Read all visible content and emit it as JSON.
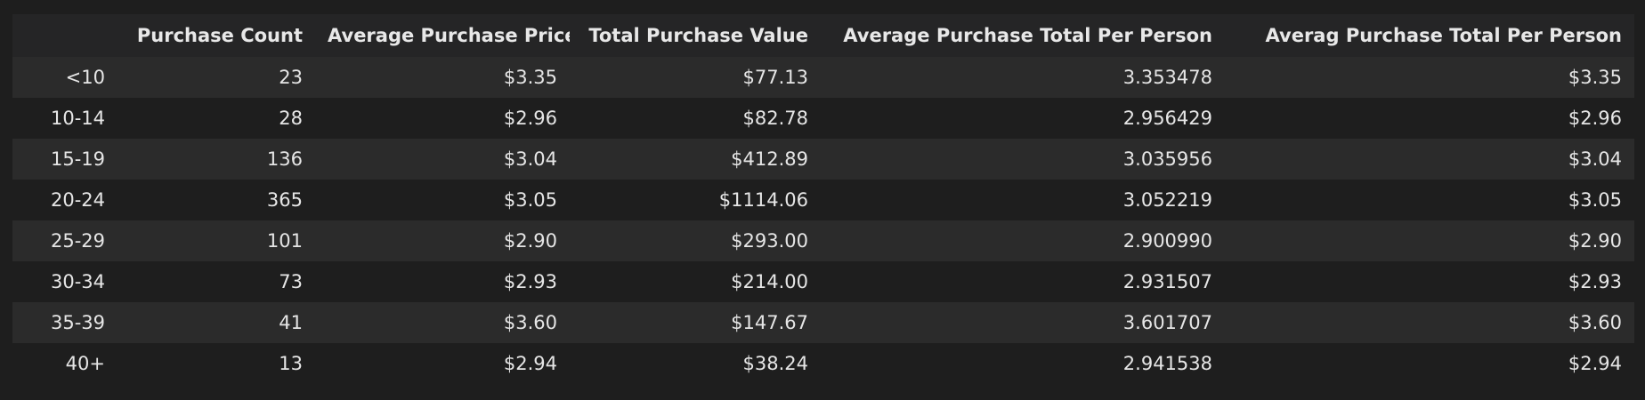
{
  "table": {
    "columns": [
      "",
      "Purchase Count",
      "Average Purchase Price",
      "Total Purchase Value",
      "Average Purchase Total Per Person",
      "Averag Purchase Total Per Person"
    ],
    "rows": [
      [
        "<10",
        "23",
        "$3.35",
        "$77.13",
        "3.353478",
        "$3.35"
      ],
      [
        "10-14",
        "28",
        "$2.96",
        "$82.78",
        "2.956429",
        "$2.96"
      ],
      [
        "15-19",
        "136",
        "$3.04",
        "$412.89",
        "3.035956",
        "$3.04"
      ],
      [
        "20-24",
        "365",
        "$3.05",
        "$1114.06",
        "3.052219",
        "$3.05"
      ],
      [
        "25-29",
        "101",
        "$2.90",
        "$293.00",
        "2.900990",
        "$2.90"
      ],
      [
        "30-34",
        "73",
        "$2.93",
        "$214.00",
        "2.931507",
        "$2.93"
      ],
      [
        "35-39",
        "41",
        "$3.60",
        "$147.67",
        "3.601707",
        "$3.60"
      ],
      [
        "40+",
        "13",
        "$2.94",
        "$38.24",
        "2.941538",
        "$2.94"
      ]
    ]
  }
}
